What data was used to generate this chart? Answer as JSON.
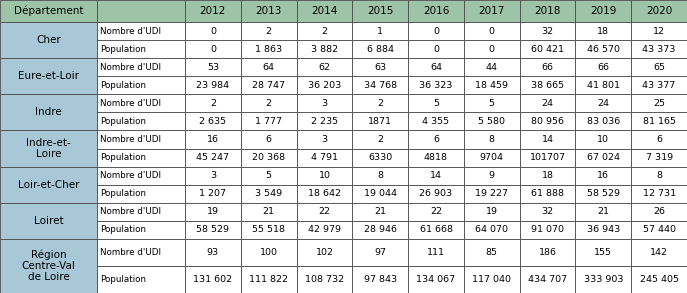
{
  "header_bg": "#9ec4a7",
  "dept_bg": "#a8c8d8",
  "white_bg": "#ffffff",
  "border_color": "#4a4a4a",
  "years": [
    "2012",
    "2013",
    "2014",
    "2015",
    "2016",
    "2017",
    "2018",
    "2019",
    "2020"
  ],
  "departments": [
    {
      "name": "Cher",
      "name_lines": 1,
      "rows": [
        [
          "Nombre d'UDI",
          "0",
          "2",
          "2",
          "1",
          "0",
          "0",
          "32",
          "18",
          "12"
        ],
        [
          "Population",
          "0",
          "1 863",
          "3 882",
          "6 884",
          "0",
          "0",
          "60 421",
          "46 570",
          "43 373"
        ]
      ]
    },
    {
      "name": "Eure-et-Loir",
      "name_lines": 1,
      "rows": [
        [
          "Nombre d'UDI",
          "53",
          "64",
          "62",
          "63",
          "64",
          "44",
          "66",
          "66",
          "65"
        ],
        [
          "Population",
          "23 984",
          "28 747",
          "36 203",
          "34 768",
          "36 323",
          "18 459",
          "38 665",
          "41 801",
          "43 377"
        ]
      ]
    },
    {
      "name": "Indre",
      "name_lines": 1,
      "rows": [
        [
          "Nombre d'UDI",
          "2",
          "2",
          "3",
          "2",
          "5",
          "5",
          "24",
          "24",
          "25"
        ],
        [
          "Population",
          "2 635",
          "1 777",
          "2 235",
          "1871",
          "4 355",
          "5 580",
          "80 956",
          "83 036",
          "81 165"
        ]
      ]
    },
    {
      "name": "Indre-et-\nLoire",
      "name_lines": 2,
      "rows": [
        [
          "Nombre d'UDI",
          "16",
          "6",
          "3",
          "2",
          "6",
          "8",
          "14",
          "10",
          "6"
        ],
        [
          "Population",
          "45 247",
          "20 368",
          "4 791",
          "6330",
          "4818",
          "9704",
          "101707",
          "67 024",
          "7 319"
        ]
      ]
    },
    {
      "name": "Loir-et-Cher",
      "name_lines": 1,
      "rows": [
        [
          "Nombre d'UDI",
          "3",
          "5",
          "10",
          "8",
          "14",
          "9",
          "18",
          "16",
          "8"
        ],
        [
          "Population",
          "1 207",
          "3 549",
          "18 642",
          "19 044",
          "26 903",
          "19 227",
          "61 888",
          "58 529",
          "12 731"
        ]
      ]
    },
    {
      "name": "Loiret",
      "name_lines": 1,
      "rows": [
        [
          "Nombre d'UDI",
          "19",
          "21",
          "22",
          "21",
          "22",
          "19",
          "32",
          "21",
          "26"
        ],
        [
          "Population",
          "58 529",
          "55 518",
          "42 979",
          "28 946",
          "61 668",
          "64 070",
          "91 070",
          "36 943",
          "57 440"
        ]
      ]
    },
    {
      "name": "Région\nCentre-Val\nde Loire",
      "name_lines": 3,
      "rows": [
        [
          "Nombre d'UDI",
          "93",
          "100",
          "102",
          "97",
          "111",
          "85",
          "186",
          "155",
          "142"
        ],
        [
          "Population",
          "131 602",
          "111 822",
          "108 732",
          "97 843",
          "134 067",
          "117 040",
          "434 707",
          "333 903",
          "245 405"
        ]
      ]
    }
  ]
}
